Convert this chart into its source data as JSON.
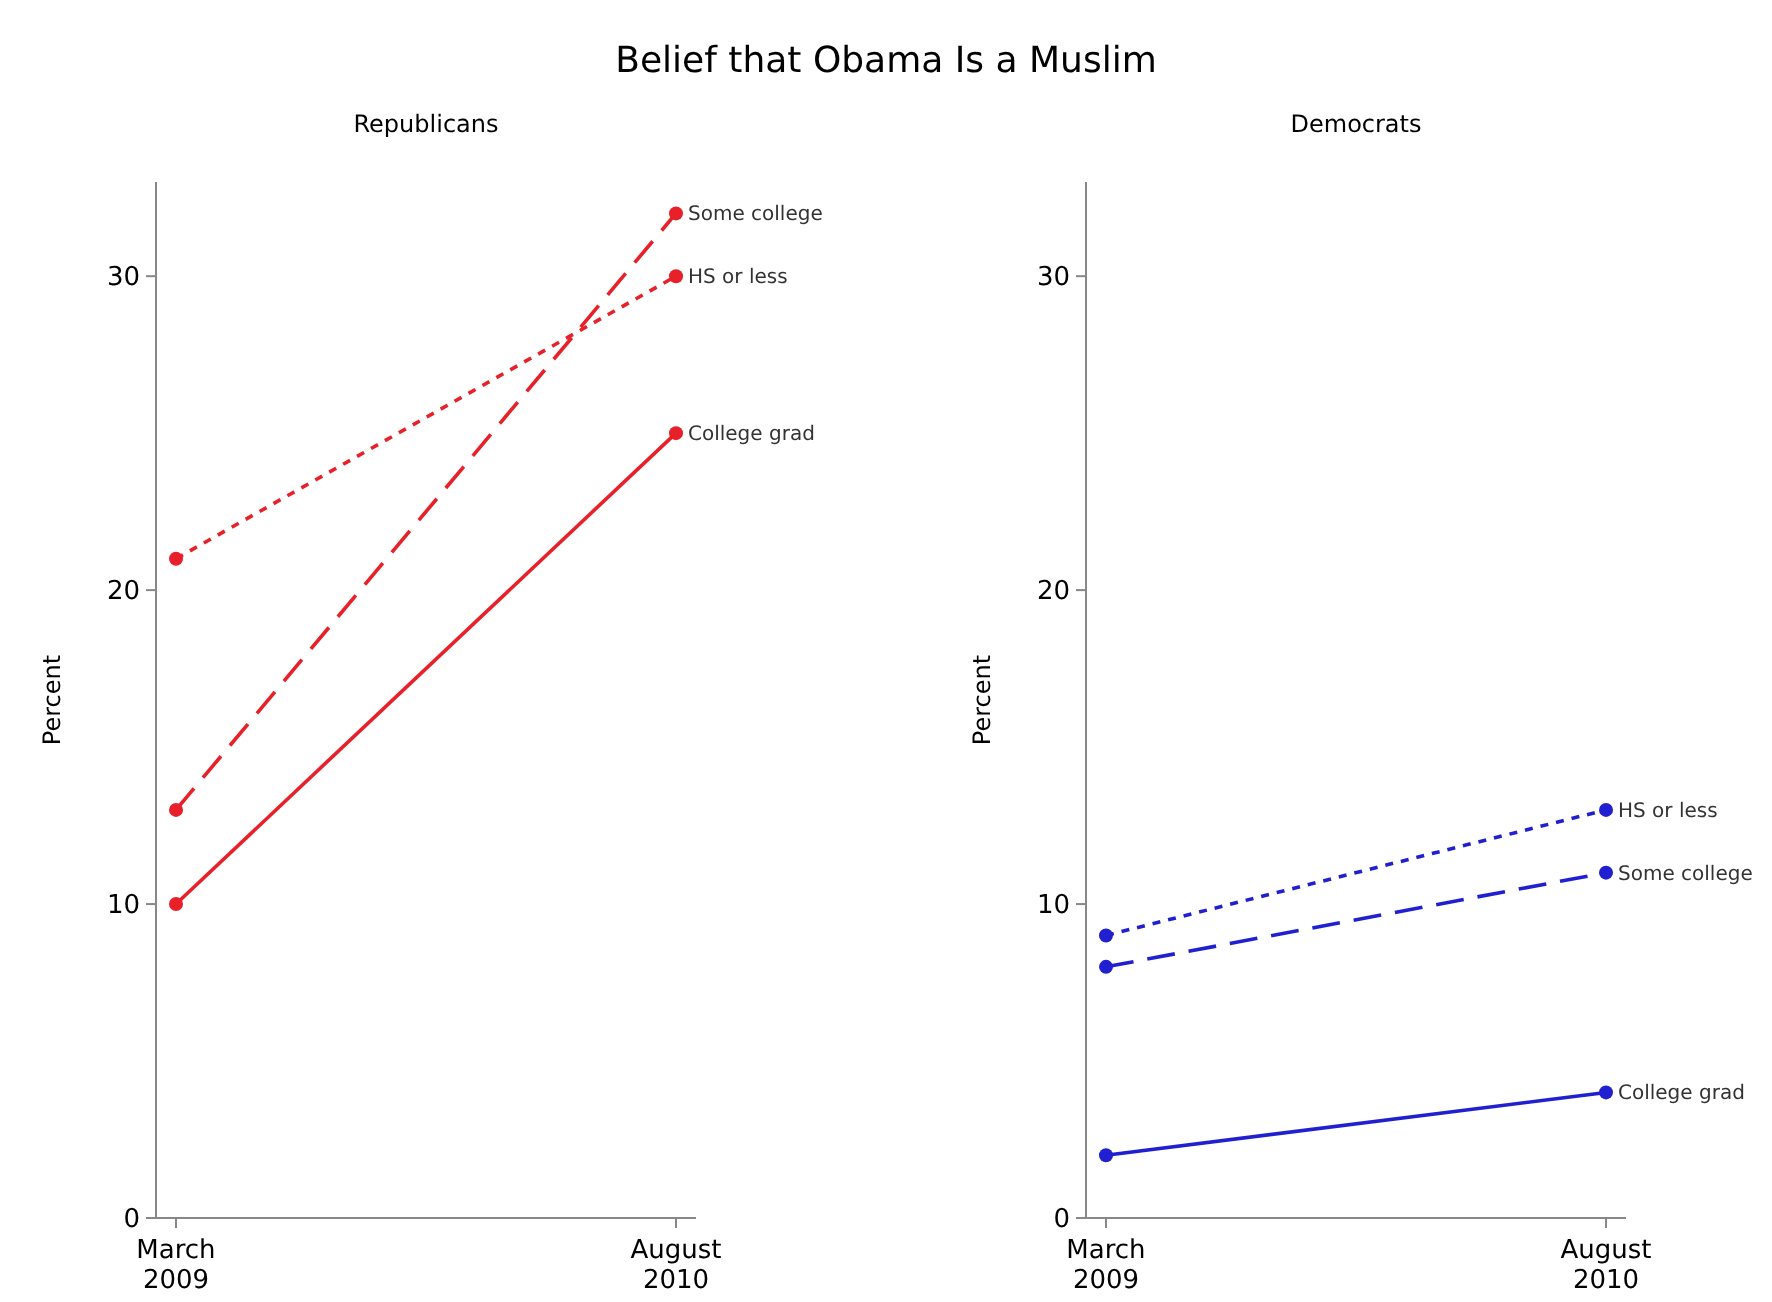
{
  "chart_data": [
    {
      "type": "line",
      "title": "Belief that Obama Is a Muslim",
      "subtitle": "Republicans",
      "ylabel": "Percent",
      "categories": [
        "March\n2009",
        "August\n2010"
      ],
      "ylim": [
        0,
        33
      ],
      "yticks": [
        0,
        10,
        20,
        30
      ],
      "marker": "circle",
      "series": [
        {
          "name": "HS or less",
          "color": "#e8202a",
          "line_style": "dotted",
          "values": [
            21,
            30
          ]
        },
        {
          "name": "Some college",
          "color": "#e8202a",
          "line_style": "dashed",
          "values": [
            13,
            32
          ]
        },
        {
          "name": "College grad",
          "color": "#e8202a",
          "line_style": "solid",
          "values": [
            10,
            25
          ]
        }
      ]
    },
    {
      "type": "line",
      "subtitle": "Democrats",
      "ylabel": "Percent",
      "categories": [
        "March\n2009",
        "August\n2010"
      ],
      "ylim": [
        0,
        33
      ],
      "yticks": [
        0,
        10,
        20,
        30
      ],
      "marker": "circle",
      "series": [
        {
          "name": "HS or less",
          "color": "#2020d0",
          "line_style": "dotted",
          "values": [
            9,
            13
          ]
        },
        {
          "name": "Some college",
          "color": "#2020d0",
          "line_style": "dashed",
          "values": [
            8,
            11
          ]
        },
        {
          "name": "College grad",
          "color": "#2020d0",
          "line_style": "solid",
          "values": [
            2,
            4
          ]
        }
      ]
    }
  ]
}
